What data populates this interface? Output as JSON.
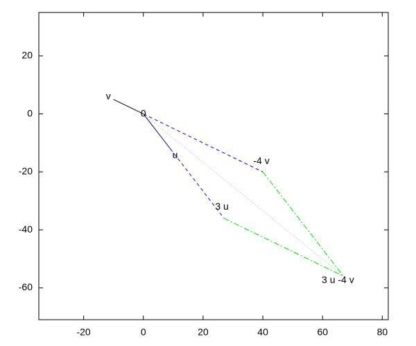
{
  "chart_data": {
    "type": "vector",
    "xlim": [
      -35,
      82
    ],
    "ylim": [
      -71,
      35
    ],
    "xticks": [
      -20,
      0,
      20,
      40,
      60,
      80
    ],
    "yticks": [
      -60,
      -40,
      -20,
      0,
      20
    ],
    "grid": false,
    "series": [
      {
        "color": "#000000",
        "style": "solid",
        "x": [
          0,
          -10
        ],
        "y": [
          0,
          5
        ]
      },
      {
        "color": "#000080",
        "style": "solid",
        "x": [
          0,
          9
        ],
        "y": [
          0,
          -12
        ]
      },
      {
        "color": "#0000ff",
        "style": "dashed",
        "x": [
          0,
          40
        ],
        "y": [
          0,
          -20
        ]
      },
      {
        "color": "#0000ff",
        "style": "dashed",
        "x": [
          9,
          27
        ],
        "y": [
          -12,
          -36
        ]
      },
      {
        "color": "#00dd00",
        "style": "dashdot",
        "x": [
          40,
          67
        ],
        "y": [
          -20,
          -56
        ]
      },
      {
        "color": "#00dd00",
        "style": "dashdot",
        "x": [
          27,
          67
        ],
        "y": [
          -36,
          -56
        ]
      },
      {
        "color": "#aaaaaa",
        "style": "dotted",
        "x": [
          0,
          67
        ],
        "y": [
          0,
          -56
        ]
      }
    ],
    "annotations": [
      {
        "text": "v",
        "x": -10,
        "y": 5
      },
      {
        "text": "0",
        "x": 0,
        "y": 0
      },
      {
        "text": "u",
        "x": 9,
        "y": -12
      },
      {
        "text": "-4 v",
        "x": 40,
        "y": -20
      },
      {
        "text": "3 u",
        "x": 27,
        "y": -36
      },
      {
        "text": "3 u -4 v",
        "x": 67,
        "y": -56
      }
    ]
  }
}
